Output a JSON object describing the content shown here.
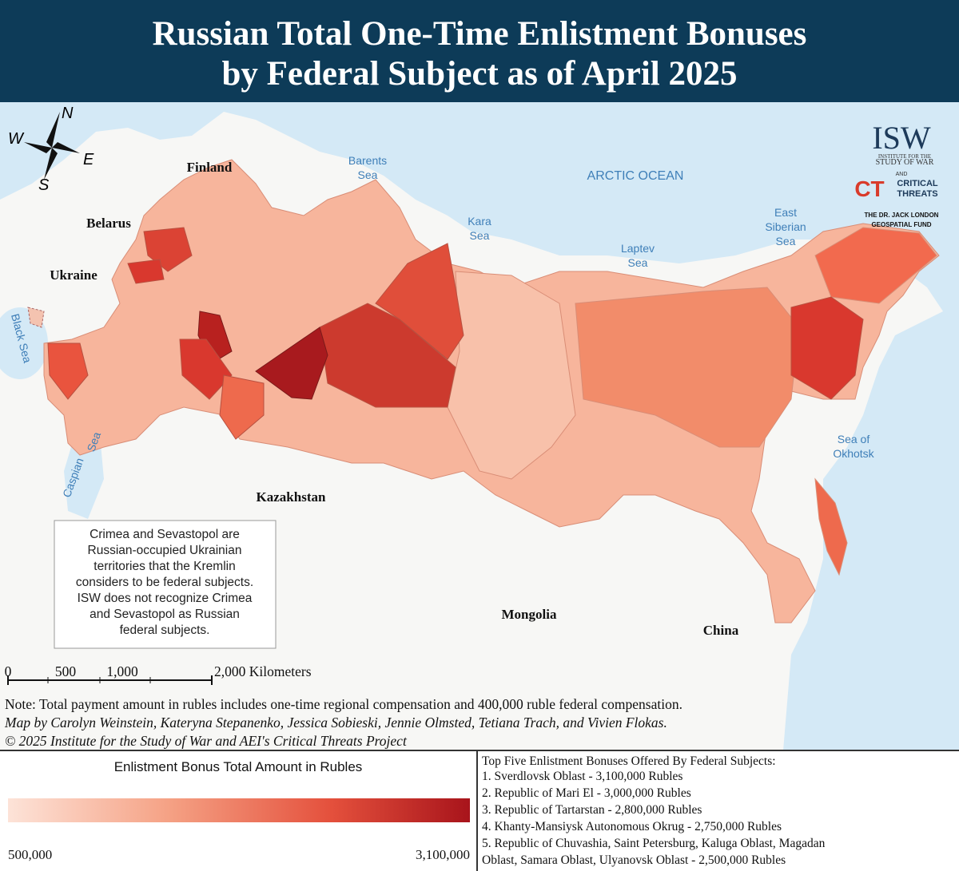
{
  "header": {
    "title_lines": [
      "Russian Total One-Time Enlistment Bonuses",
      "by Federal Subject as of April 2025"
    ]
  },
  "map": {
    "countries": [
      "Finland",
      "Belarus",
      "Ukraine",
      "Kazakhstan",
      "Mongolia",
      "China"
    ],
    "seas": {
      "barents": [
        "Barents",
        "Sea"
      ],
      "arctic": "ARCTIC OCEAN",
      "kara": [
        "Kara",
        "Sea"
      ],
      "laptev": [
        "Laptev",
        "Sea"
      ],
      "east_siberian": [
        "East",
        "Siberian",
        "Sea"
      ],
      "okhotsk": [
        "Sea of",
        "Okhotsk"
      ],
      "black": "Black Sea",
      "caspian": [
        "Caspian",
        "Sea"
      ]
    },
    "compass": {
      "n": "N",
      "e": "E",
      "s": "S",
      "w": "W"
    },
    "logo": {
      "isw": "ISW",
      "isw_sub": [
        "INSTITUTE FOR THE",
        "STUDY OF WAR"
      ],
      "and": "AND",
      "ct": "CT",
      "ct_name": [
        "CRITICAL",
        "THREATS"
      ],
      "fund": [
        "THE DR. JACK LONDON",
        "GEOSPATIAL FUND"
      ]
    }
  },
  "note_box": {
    "lines": [
      "Crimea and Sevastopol are",
      "Russian-occupied Ukrainian",
      "territories that the Kremlin",
      "considers to be federal subjects.",
      "ISW does not recognize Crimea",
      "and Sevastopol as Russian",
      "federal subjects."
    ]
  },
  "scale_bar": {
    "labels": [
      "0",
      "500",
      "1,000",
      "2,000 Kilometers"
    ]
  },
  "credits": {
    "note": "Note: Total payment amount in rubles includes one-time regional compensation and 400,000 ruble federal compensation.",
    "authors": "Map by Carolyn Weinstein, Kateryna Stepanenko, Jessica Sobieski, Jennie Olmsted, Tetiana Trach, and Vivien Flokas.",
    "copyright": "© 2025 Institute for the Study of War and AEI's Critical Threats Project"
  },
  "legend": {
    "title": "Enlistment Bonus Total Amount in Rubles",
    "min_label": "500,000",
    "max_label": "3,100,000"
  },
  "top_five": {
    "title": "Top Five Enlistment Bonuses Offered By Federal Subjects:",
    "lines": [
      "1. Sverdlovsk Oblast - 3,100,000 Rubles",
      "2. Republic of Mari El - 3,000,000 Rubles",
      "3. Republic of Tartarstan - 2,800,000 Rubles",
      "4. Khanty-Mansiysk Autonomous Okrug - 2,750,000 Rubles",
      "5. Republic of Chuvashia, Saint Petersburg, Kaluga Oblast, Magadan",
      "Oblast, Samara Oblast, Ulyanovsk Oblast - 2,500,000 Rubles"
    ]
  }
}
